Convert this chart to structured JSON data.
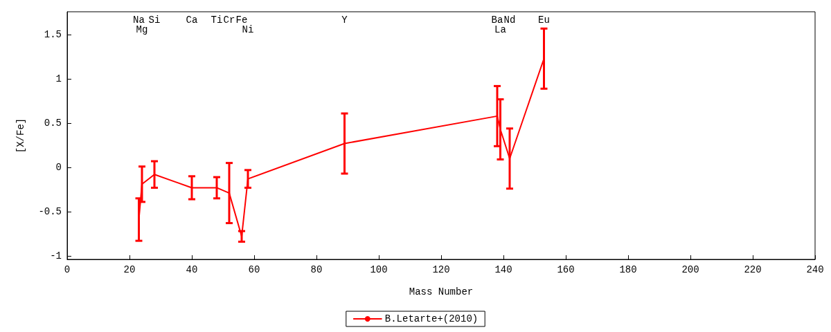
{
  "chart_data": {
    "type": "line",
    "xlabel": "Mass Number",
    "ylabel": "[X/Fe]",
    "x": [
      23,
      24,
      28,
      40,
      48,
      52,
      56,
      58,
      89,
      138,
      139,
      142,
      153
    ],
    "series": [
      {
        "name": "B.Letarte+(2010)",
        "color": "#ff0000",
        "values": [
          -0.59,
          -0.19,
          -0.08,
          -0.23,
          -0.23,
          -0.29,
          -0.78,
          -0.13,
          0.27,
          0.58,
          0.43,
          0.1,
          1.23
        ],
        "errors": [
          0.24,
          0.2,
          0.15,
          0.13,
          0.12,
          0.34,
          0.06,
          0.1,
          0.34,
          0.34,
          0.34,
          0.34,
          0.34
        ]
      }
    ],
    "xlim": [
      0,
      240
    ],
    "xticks": [
      0,
      20,
      40,
      60,
      80,
      100,
      120,
      140,
      160,
      180,
      200,
      220,
      240
    ],
    "ylim": [
      -1.04,
      1.76
    ],
    "yticks": [
      -1,
      -0.5,
      0,
      0.5,
      1,
      1.5
    ],
    "grid": false,
    "legend": "bottom",
    "marker": "none",
    "line_style": "solid",
    "annotations": [
      "Na",
      "Mg",
      "Si",
      "Ca",
      "Ti",
      "Cr",
      "Fe",
      "Ni",
      "Y",
      "Ba",
      "La",
      "Nd",
      "Eu"
    ]
  }
}
